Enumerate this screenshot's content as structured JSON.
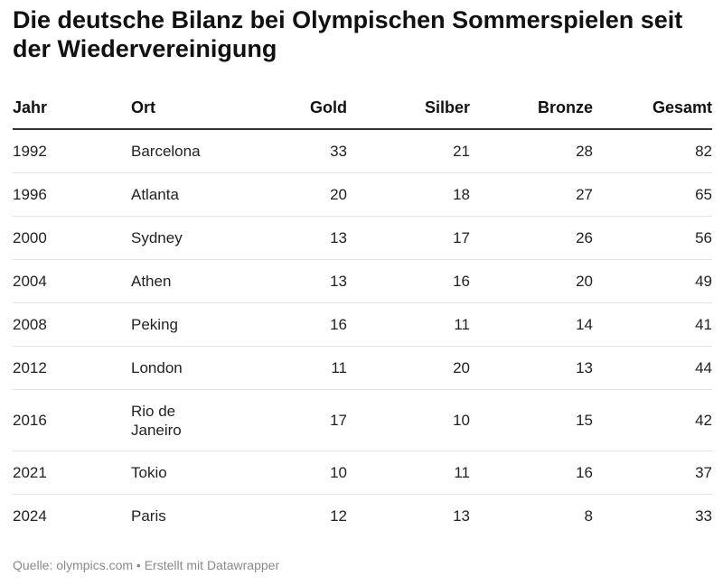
{
  "chart_data": {
    "type": "table",
    "title": "Die deutsche Bilanz bei Olympischen Sommerspielen seit der Wiedervereinigung",
    "columns": [
      "Jahr",
      "Ort",
      "Gold",
      "Silber",
      "Bronze",
      "Gesamt"
    ],
    "rows": [
      {
        "jahr": "1992",
        "ort": "Barcelona",
        "gold": 33,
        "silber": 21,
        "bronze": 28,
        "gesamt": 82
      },
      {
        "jahr": "1996",
        "ort": "Atlanta",
        "gold": 20,
        "silber": 18,
        "bronze": 27,
        "gesamt": 65
      },
      {
        "jahr": "2000",
        "ort": "Sydney",
        "gold": 13,
        "silber": 17,
        "bronze": 26,
        "gesamt": 56
      },
      {
        "jahr": "2004",
        "ort": "Athen",
        "gold": 13,
        "silber": 16,
        "bronze": 20,
        "gesamt": 49
      },
      {
        "jahr": "2008",
        "ort": "Peking",
        "gold": 16,
        "silber": 11,
        "bronze": 14,
        "gesamt": 41
      },
      {
        "jahr": "2012",
        "ort": "London",
        "gold": 11,
        "silber": 20,
        "bronze": 13,
        "gesamt": 44
      },
      {
        "jahr": "2016",
        "ort": "Rio de Janeiro",
        "gold": 17,
        "silber": 10,
        "bronze": 15,
        "gesamt": 42
      },
      {
        "jahr": "2021",
        "ort": "Tokio",
        "gold": 10,
        "silber": 11,
        "bronze": 16,
        "gesamt": 37
      },
      {
        "jahr": "2024",
        "ort": "Paris",
        "gold": 12,
        "silber": 13,
        "bronze": 8,
        "gesamt": 33
      }
    ],
    "source": "Quelle: olympics.com • Erstellt mit Datawrapper"
  }
}
